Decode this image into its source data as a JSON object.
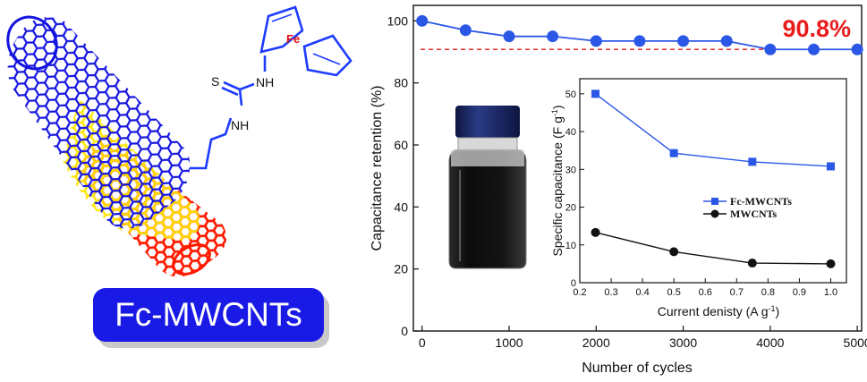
{
  "molecule": {
    "label": "Fc-MWCNTs",
    "atoms": {
      "fe": "Fe",
      "s": "S",
      "nh_top": "NH",
      "nh_bottom": "NH"
    },
    "colors": {
      "tube_blue": "#1414e0",
      "tube_yellow": "#ffee00",
      "tube_red": "#ff1a00",
      "bond": "#1e3cff",
      "fe_label": "#e01010"
    }
  },
  "vial": {
    "cap_color": "#1b2a66",
    "liquid_color": "#111111"
  },
  "chart_data": [
    {
      "type": "line",
      "x": [
        0,
        500,
        1000,
        1500,
        2000,
        2500,
        3000,
        3500,
        4000,
        4500,
        5000
      ],
      "series": [
        {
          "values": [
            100,
            97,
            95,
            95,
            93.5,
            93.5,
            93.5,
            93.5,
            90.8,
            90.8,
            90.8
          ],
          "color": "#2b57e6"
        }
      ],
      "xlabel": "Number of cycles",
      "ylabel": "Capacitance retention (%)",
      "xlim": [
        -100,
        5050
      ],
      "ylim": [
        0,
        105
      ],
      "xticks": [
        0,
        1000,
        2000,
        3000,
        4000,
        5000
      ],
      "yticks": [
        0,
        20,
        40,
        60,
        80,
        100
      ],
      "annotation": {
        "text": "90.8%",
        "value": 90.8,
        "color": "#e81c1c"
      },
      "grid": false
    },
    {
      "type": "line",
      "x": [
        0.25,
        0.5,
        0.75,
        1.0
      ],
      "series": [
        {
          "name": "Fc-MWCNTs",
          "values": [
            50,
            34.3,
            32,
            30.8
          ],
          "color": "#2b57e6",
          "marker": "square"
        },
        {
          "name": "MWCNTs",
          "values": [
            13.3,
            8.2,
            5.2,
            5.0
          ],
          "color": "#111111",
          "marker": "circle"
        }
      ],
      "xlabel": "Current denisty (A g",
      "xlabel_sup": "-1",
      "xlabel_end": ")",
      "ylabel": "Specific capacitance (F g",
      "ylabel_sup": "-1",
      "ylabel_end": ")",
      "xlim": [
        0.2,
        1.05
      ],
      "ylim": [
        0,
        54
      ],
      "xticks": [
        0.2,
        0.3,
        0.4,
        0.5,
        0.6,
        0.7,
        0.8,
        0.9,
        1.0
      ],
      "yticks": [
        0,
        10,
        20,
        30,
        40,
        50
      ],
      "legend": "center-right",
      "grid": false
    }
  ]
}
